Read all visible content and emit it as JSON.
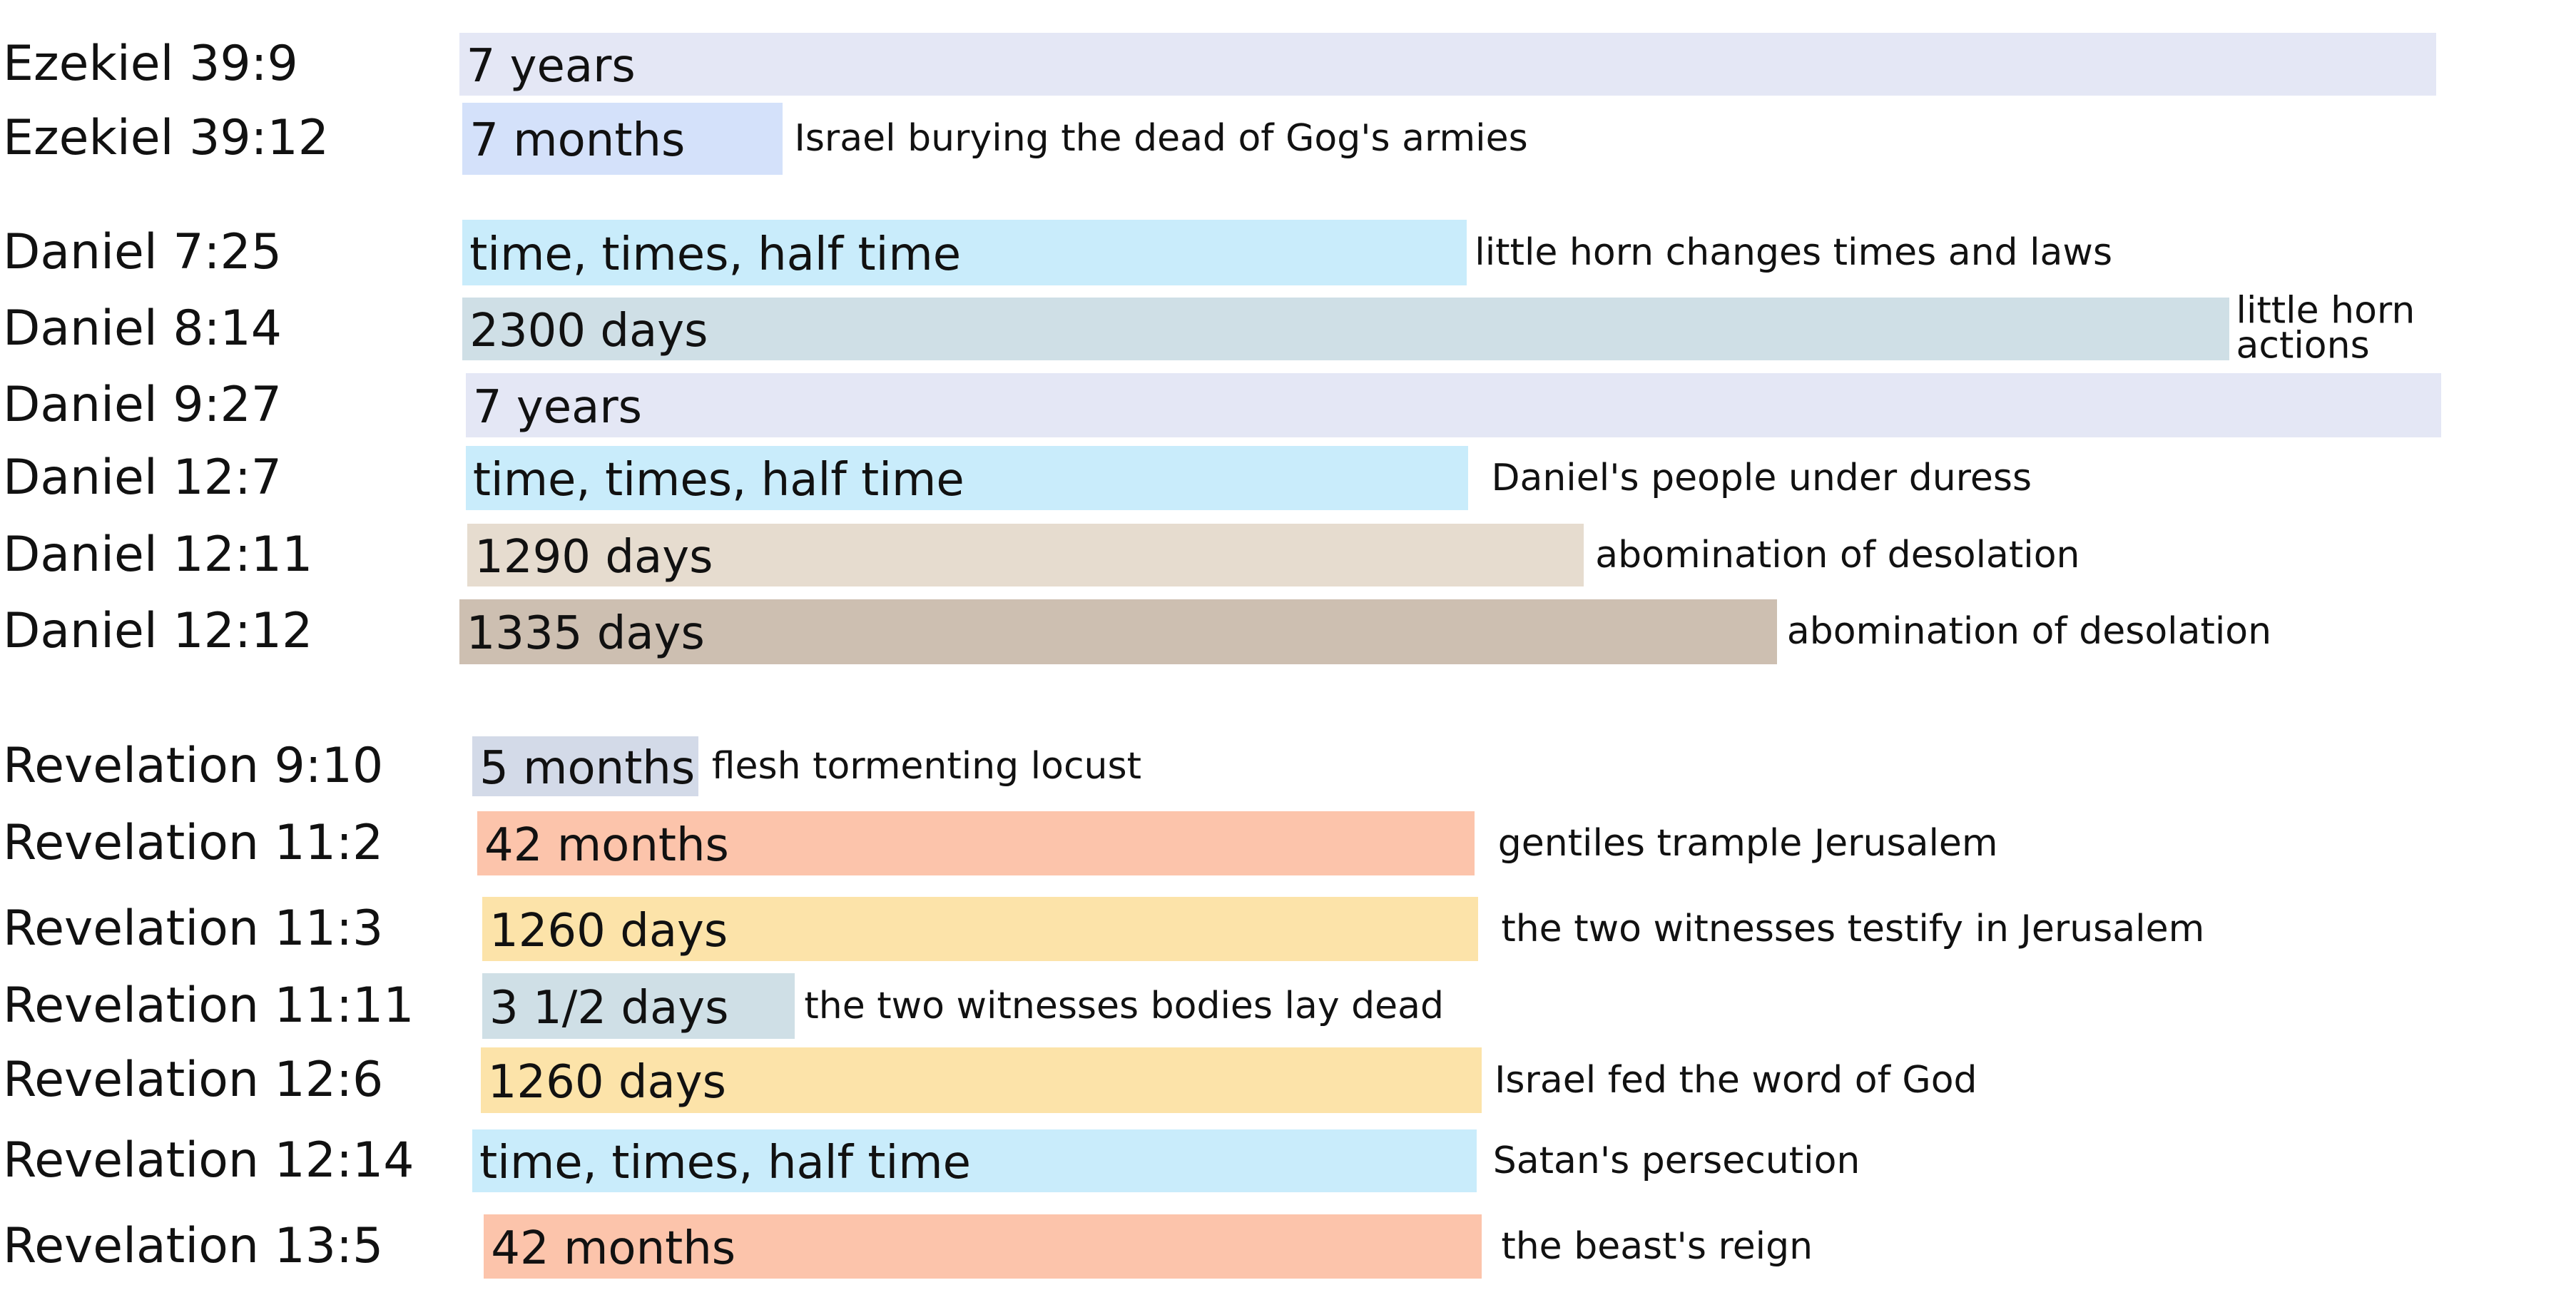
{
  "colors": {
    "lavender": "#e4e7f5",
    "periwinkle": "#d4e1fa",
    "light_cyan": "#c9ecfb",
    "grey_blue": "#cfdfe6",
    "beige": "#e6dccf",
    "taupe": "#cdbfb1",
    "slate": "#d3dae8",
    "salmon": "#fcc4ab",
    "yellow": "#fce3a9"
  },
  "rows": [
    {
      "ref": "Ezekiel 39:9",
      "duration": "7 years",
      "note": "",
      "color": "#e4e7f5"
    },
    {
      "ref": "Ezekiel 39:12",
      "duration": "7 months",
      "note": "Israel burying the dead of Gog's armies",
      "color": "#d4e1fa"
    },
    {
      "ref": "Daniel 7:25",
      "duration": "time, times, half time",
      "note": "little horn changes times and laws",
      "color": "#c9ecfb"
    },
    {
      "ref": "Daniel 8:14",
      "duration": "2300 days",
      "note": "little horn\nactions",
      "color": "#cfdfe6"
    },
    {
      "ref": "Daniel 9:27",
      "duration": "7 years",
      "note": "",
      "color": "#e4e7f5"
    },
    {
      "ref": "Daniel 12:7",
      "duration": "time, times, half time",
      "note": "Daniel's people under duress",
      "color": "#c9ecfb"
    },
    {
      "ref": "Daniel 12:11",
      "duration": "1290 days",
      "note": "abomination of desolation",
      "color": "#e6dccf"
    },
    {
      "ref": "Daniel 12:12",
      "duration": "1335 days",
      "note": "abomination of desolation",
      "color": "#cdbfb1"
    },
    {
      "ref": "Revelation 9:10",
      "duration": "5 months",
      "note": "flesh tormenting locust",
      "color": "#d3dae8"
    },
    {
      "ref": "Revelation 11:2",
      "duration": "42 months",
      "note": "gentiles trample Jerusalem",
      "color": "#fcc4ab"
    },
    {
      "ref": "Revelation 11:3",
      "duration": "1260 days",
      "note": "the two witnesses testify in Jerusalem",
      "color": "#fce3a9"
    },
    {
      "ref": "Revelation 11:11",
      "duration": "3 1/2 days",
      "note": "the two witnesses bodies lay dead",
      "color": "#cfdfe6"
    },
    {
      "ref": "Revelation 12:6",
      "duration": "1260 days",
      "note": "Israel fed the word of God",
      "color": "#fce3a9"
    },
    {
      "ref": "Revelation 12:14",
      "duration": "time, times, half time",
      "note": "Satan's persecution",
      "color": "#c9ecfb"
    },
    {
      "ref": "Revelation 13:5",
      "duration": "42 months",
      "note": "the beast's reign",
      "color": "#fcc4ab"
    }
  ]
}
